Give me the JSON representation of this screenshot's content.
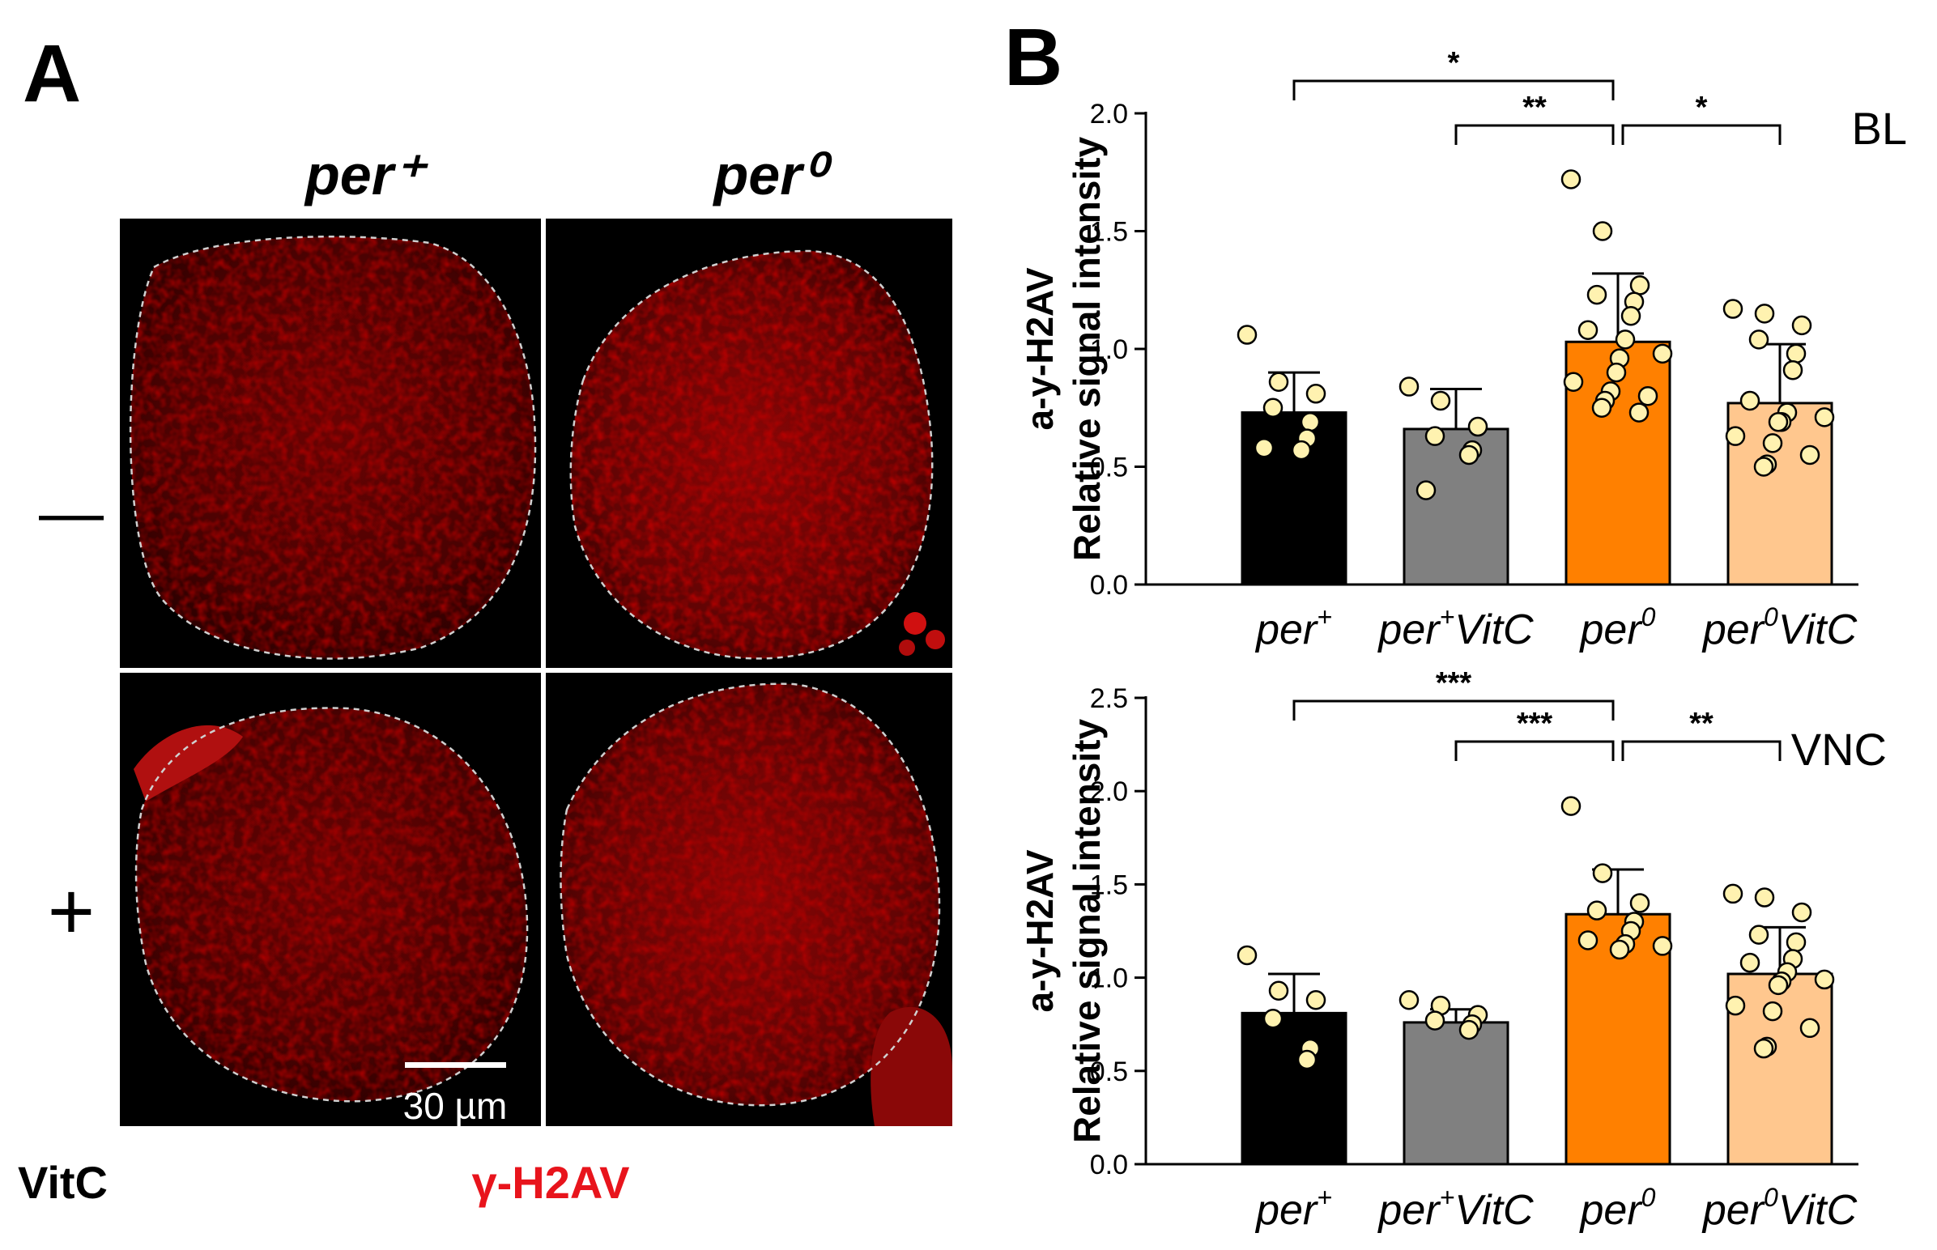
{
  "panel_a": {
    "letter": "A",
    "column_headers": [
      "per⁺",
      "per⁰"
    ],
    "row_labels": [
      "—",
      "+"
    ],
    "treatment_label": "VitC",
    "stain_label": "γ-H2AV",
    "scale_bar_label": "30 µm",
    "colors": {
      "stain": "#e8141c",
      "tissue_dark": "#2a0000",
      "tissue_mid": "#7a0505",
      "outline": "#d0d0d0"
    }
  },
  "panel_b": {
    "letter": "B",
    "colors": {
      "per_plus": "#000000",
      "per_plus_vitc": "#808080",
      "per0": "#ff8000",
      "per0_vitc": "#ffc78e",
      "dot": "#fff2b0"
    }
  },
  "chart_data": [
    {
      "type": "bar",
      "region_label": "BL",
      "ylabel_lines": [
        "a-y-H2AV",
        "Relative signal intensity"
      ],
      "categories": [
        {
          "name": "per",
          "sup": "+",
          "suffix": ""
        },
        {
          "name": "per",
          "sup": "+",
          "suffix": "VitC"
        },
        {
          "name": "per",
          "sup": "0",
          "suffix": ""
        },
        {
          "name": "per",
          "sup": "0",
          "suffix": "VitC"
        }
      ],
      "ylim": [
        0,
        2.0
      ],
      "yticks": [
        "0.0",
        "0.5",
        "1.0",
        "1.5",
        "2.0"
      ],
      "means": [
        0.73,
        0.66,
        1.03,
        0.77
      ],
      "sd": [
        0.17,
        0.17,
        0.29,
        0.25
      ],
      "points": [
        [
          1.06,
          0.86,
          0.81,
          0.75,
          0.69,
          0.62,
          0.58,
          0.57
        ],
        [
          0.84,
          0.78,
          0.67,
          0.63,
          0.57,
          0.55,
          0.4
        ],
        [
          1.72,
          1.5,
          1.27,
          1.23,
          1.2,
          1.14,
          1.08,
          1.04,
          0.98,
          0.96,
          0.9,
          0.86,
          0.82,
          0.8,
          0.78,
          0.75,
          0.73
        ],
        [
          1.17,
          1.15,
          1.1,
          1.04,
          0.98,
          0.91,
          0.78,
          0.73,
          0.71,
          0.69,
          0.69,
          0.63,
          0.6,
          0.55,
          0.51,
          0.5
        ]
      ],
      "significance": [
        {
          "from": 0,
          "to": 2,
          "label": "*"
        },
        {
          "from": 1,
          "to": 2,
          "label": "**"
        },
        {
          "from": 2,
          "to": 3,
          "label": "*"
        }
      ]
    },
    {
      "type": "bar",
      "region_label": "VNC",
      "ylabel_lines": [
        "a-y-H2AV",
        "Relative signal intensity"
      ],
      "categories": [
        {
          "name": "per",
          "sup": "+",
          "suffix": ""
        },
        {
          "name": "per",
          "sup": "+",
          "suffix": "VitC"
        },
        {
          "name": "per",
          "sup": "0",
          "suffix": ""
        },
        {
          "name": "per",
          "sup": "0",
          "suffix": "VitC"
        }
      ],
      "ylim": [
        0,
        2.5
      ],
      "yticks": [
        "0.0",
        "0.5",
        "1.0",
        "1.5",
        "2.0",
        "2.5"
      ],
      "means": [
        0.81,
        0.76,
        1.34,
        1.02
      ],
      "sd": [
        0.21,
        0.07,
        0.24,
        0.25
      ],
      "points": [
        [
          1.12,
          0.93,
          0.88,
          0.78,
          0.62,
          0.56
        ],
        [
          0.88,
          0.85,
          0.8,
          0.77,
          0.75,
          0.72
        ],
        [
          1.92,
          1.56,
          1.4,
          1.36,
          1.3,
          1.25,
          1.2,
          1.18,
          1.17,
          1.15
        ],
        [
          1.45,
          1.43,
          1.35,
          1.23,
          1.19,
          1.1,
          1.08,
          1.03,
          0.99,
          0.98,
          0.96,
          0.85,
          0.82,
          0.73,
          0.63,
          0.62
        ]
      ],
      "significance": [
        {
          "from": 0,
          "to": 2,
          "label": "***"
        },
        {
          "from": 1,
          "to": 2,
          "label": "***"
        },
        {
          "from": 2,
          "to": 3,
          "label": "**"
        }
      ]
    }
  ]
}
